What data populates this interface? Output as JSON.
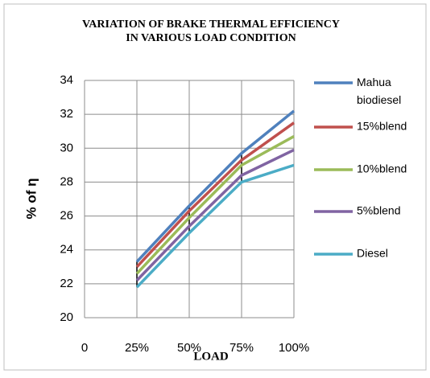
{
  "chart_data": {
    "type": "line",
    "title": "VARIATION OF BRAKE THERMAL EFFICIENCY\nIN VARIOUS LOAD CONDITION",
    "x_label": "LOAD",
    "y_label": "% of η",
    "x": [
      25,
      50,
      75,
      100
    ],
    "series": [
      {
        "name": "Mahua biodiesel",
        "color": "#4f81bd",
        "values": [
          23.3,
          26.6,
          29.7,
          32.2
        ]
      },
      {
        "name": "15%blend",
        "color": "#c0504d",
        "values": [
          23.0,
          26.3,
          29.3,
          31.5
        ]
      },
      {
        "name": "10%blend",
        "color": "#9bbb59",
        "values": [
          22.6,
          25.9,
          29.0,
          30.7
        ]
      },
      {
        "name": "5%blend",
        "color": "#8064a2",
        "values": [
          22.2,
          25.4,
          28.4,
          29.9
        ]
      },
      {
        "name": "Diesel",
        "color": "#4bacc6",
        "values": [
          21.8,
          25.0,
          28.0,
          29.0
        ]
      }
    ],
    "xlim": [
      0,
      100
    ],
    "xticks": [
      0,
      {
        "value": 25,
        "label": "25%"
      },
      {
        "value": 50,
        "label": "50%"
      },
      {
        "value": 75,
        "label": "75%"
      },
      {
        "value": 100,
        "label": "100%"
      }
    ],
    "ylim": [
      20,
      34
    ],
    "yticks": [
      20,
      22,
      24,
      26,
      28,
      30,
      32,
      34
    ],
    "grid": true,
    "legend": "right"
  }
}
